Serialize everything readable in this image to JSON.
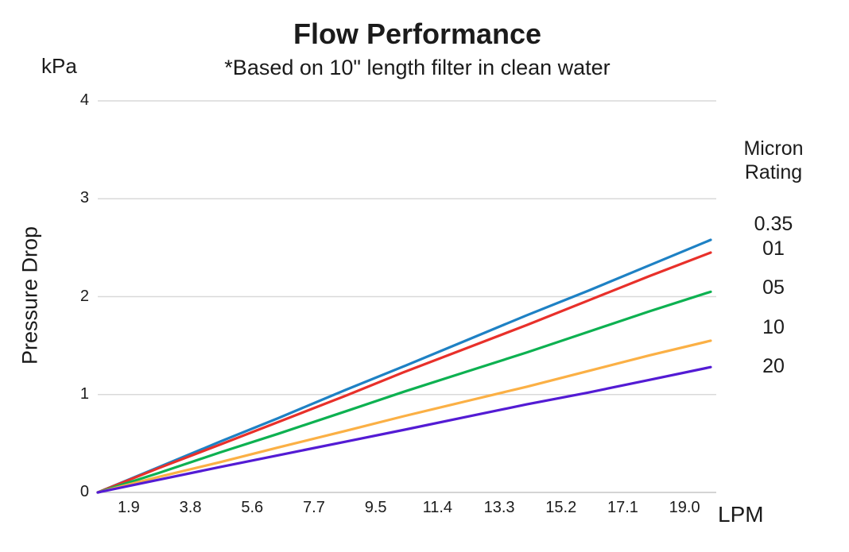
{
  "chart_data": {
    "type": "line",
    "title": "Flow Performance",
    "subtitle": "*Based on 10\" length filter in clean water",
    "ylabel": "Pressure Drop",
    "y_axis_unit_label": "kPa",
    "x_axis_unit_label": "LPM",
    "ylim": [
      0,
      4
    ],
    "yticks": [
      0,
      1,
      2,
      3,
      4
    ],
    "grid": "horizontal-gridlines",
    "legend_title": "Micron Rating",
    "legend_position": "right",
    "x": [
      0,
      1.9,
      3.8,
      5.6,
      7.7,
      9.5,
      11.4,
      13.3,
      15.2,
      17.1,
      19.0
    ],
    "xtick_labels": [
      "1.9",
      "3.8",
      "5.6",
      "7.7",
      "9.5",
      "11.4",
      "13.3",
      "15.2",
      "17.1",
      "19.0"
    ],
    "series": [
      {
        "name": "0.35",
        "color": "#1e81c4",
        "values": [
          0,
          0.26,
          0.52,
          0.76,
          1.05,
          1.29,
          1.55,
          1.81,
          2.06,
          2.32,
          2.58
        ]
      },
      {
        "name": "01",
        "color": "#e8302a",
        "values": [
          0,
          0.25,
          0.49,
          0.72,
          0.99,
          1.23,
          1.47,
          1.71,
          1.96,
          2.21,
          2.45
        ]
      },
      {
        "name": "05",
        "color": "#0db151",
        "values": [
          0,
          0.2,
          0.41,
          0.6,
          0.83,
          1.03,
          1.23,
          1.43,
          1.64,
          1.85,
          2.05
        ]
      },
      {
        "name": "10",
        "color": "#fbb045",
        "values": [
          0,
          0.16,
          0.31,
          0.46,
          0.63,
          0.78,
          0.93,
          1.08,
          1.24,
          1.4,
          1.55
        ]
      },
      {
        "name": "20",
        "color": "#531bd4",
        "values": [
          0,
          0.13,
          0.26,
          0.38,
          0.52,
          0.64,
          0.77,
          0.9,
          1.02,
          1.15,
          1.28
        ]
      }
    ],
    "gridline_color": "#d9d9d9",
    "axis_line_color": "#c6c6c6"
  }
}
